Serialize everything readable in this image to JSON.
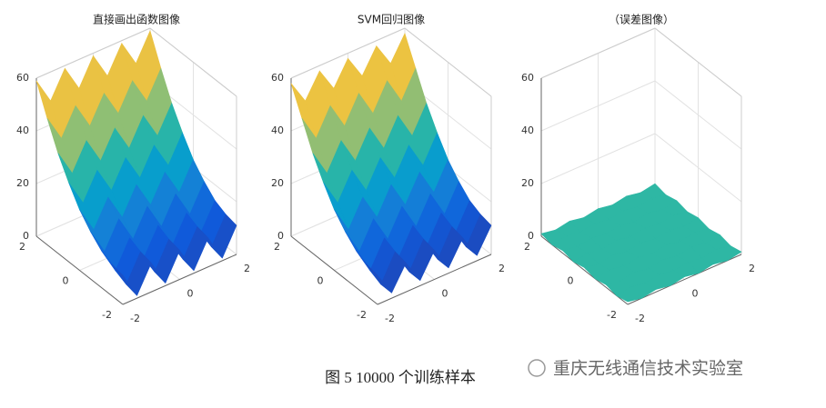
{
  "chart_data": [
    {
      "type": "surface",
      "title": "直接画出函数图像",
      "colormap": "parula",
      "grid": true,
      "x": [
        -2,
        -1.5,
        -1,
        -0.5,
        0,
        0.5,
        1,
        1.5,
        2
      ],
      "y": [
        -2,
        -1.5,
        -1,
        -0.5,
        0,
        0.5,
        1,
        1.5,
        2
      ],
      "z": [
        [
          11,
          1,
          11,
          1,
          11,
          1,
          11,
          1,
          11
        ],
        [
          12,
          2,
          12,
          2,
          12,
          2,
          12,
          2,
          12
        ],
        [
          14,
          4,
          14,
          4,
          14,
          4,
          14,
          4,
          14
        ],
        [
          18,
          8,
          18,
          8,
          18,
          8,
          18,
          8,
          18
        ],
        [
          23,
          13,
          23,
          13,
          23,
          13,
          23,
          13,
          23
        ],
        [
          30,
          20,
          30,
          20,
          30,
          20,
          30,
          20,
          30
        ],
        [
          38,
          28,
          38,
          28,
          38,
          28,
          38,
          28,
          38
        ],
        [
          48,
          38,
          48,
          38,
          48,
          38,
          48,
          38,
          48
        ],
        [
          59,
          49,
          59,
          49,
          59,
          49,
          59,
          49,
          59
        ]
      ],
      "xlim": [
        -2,
        2
      ],
      "ylim": [
        -2,
        2
      ],
      "zlim": [
        0,
        60
      ],
      "xticks": [
        -2,
        0,
        2
      ],
      "yticks": [
        -2,
        0,
        2
      ],
      "zticks": [
        0,
        20,
        40,
        60
      ]
    },
    {
      "type": "surface",
      "title": "SVM回归图像",
      "colormap": "parula",
      "grid": true,
      "x": [
        -2,
        -1.5,
        -1,
        -0.5,
        0,
        0.5,
        1,
        1.5,
        2
      ],
      "y": [
        -2,
        -1.5,
        -1,
        -0.5,
        0,
        0.5,
        1,
        1.5,
        2
      ],
      "z": [
        [
          11,
          2,
          11,
          2,
          11,
          2,
          11,
          2,
          11
        ],
        [
          12,
          2,
          12,
          2,
          12,
          2,
          12,
          2,
          12
        ],
        [
          14,
          4,
          14,
          4,
          14,
          4,
          14,
          4,
          14
        ],
        [
          18,
          8,
          18,
          8,
          18,
          8,
          18,
          8,
          18
        ],
        [
          23,
          13,
          23,
          13,
          23,
          13,
          23,
          13,
          23
        ],
        [
          30,
          20,
          30,
          20,
          30,
          20,
          30,
          20,
          30
        ],
        [
          38,
          28,
          38,
          28,
          38,
          28,
          38,
          28,
          38
        ],
        [
          48,
          38,
          48,
          38,
          48,
          38,
          48,
          38,
          48
        ],
        [
          58,
          49,
          58,
          49,
          58,
          49,
          58,
          49,
          58
        ]
      ],
      "xlim": [
        -2,
        2
      ],
      "ylim": [
        -2,
        2
      ],
      "zlim": [
        0,
        60
      ],
      "xticks": [
        -2,
        0,
        2
      ],
      "yticks": [
        -2,
        0,
        2
      ],
      "zticks": [
        0,
        20,
        40,
        60
      ]
    },
    {
      "type": "surface",
      "title": "（误差图像）",
      "colormap": "parula",
      "grid": true,
      "x": [
        -2,
        -1.5,
        -1,
        -0.5,
        0,
        0.5,
        1,
        1.5,
        2
      ],
      "y": [
        -2,
        -1.5,
        -1,
        -0.5,
        0,
        0.5,
        1,
        1.5,
        2
      ],
      "z": [
        [
          1,
          0,
          1,
          0,
          1,
          0,
          1,
          0,
          1
        ],
        [
          0,
          1,
          0,
          1,
          0,
          1,
          0,
          1,
          0
        ],
        [
          1,
          0,
          1,
          0,
          1,
          0,
          1,
          0,
          1
        ],
        [
          0,
          1,
          0,
          1,
          0,
          1,
          0,
          1,
          0
        ],
        [
          1,
          0,
          1,
          0,
          1,
          0,
          1,
          0,
          1
        ],
        [
          0,
          1,
          0,
          1,
          0,
          1,
          0,
          1,
          0
        ],
        [
          1,
          0,
          1,
          0,
          1,
          0,
          1,
          0,
          1
        ],
        [
          0,
          1,
          0,
          1,
          0,
          1,
          0,
          1,
          0
        ],
        [
          1,
          0,
          1,
          0,
          1,
          0,
          1,
          0,
          1
        ]
      ],
      "xlim": [
        -2,
        2
      ],
      "ylim": [
        -2,
        2
      ],
      "zlim": [
        0,
        60
      ],
      "xticks": [
        -2,
        0,
        2
      ],
      "yticks": [
        -2,
        0,
        2
      ],
      "zticks": [
        0,
        20,
        40,
        60
      ]
    }
  ],
  "caption": "图 5 10000 个训练样本",
  "watermark": "重庆无线通信技术实验室"
}
